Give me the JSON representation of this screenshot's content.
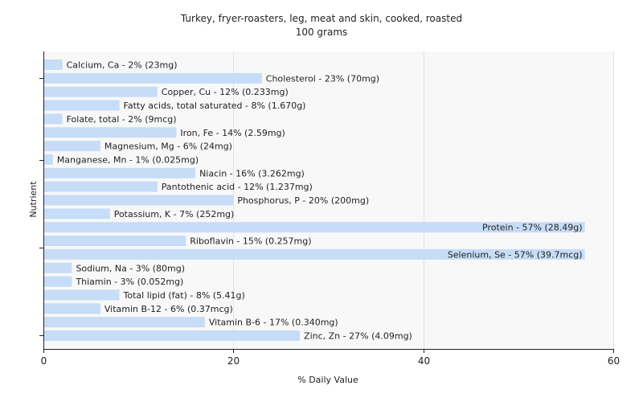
{
  "chart_data": {
    "type": "bar",
    "orientation": "horizontal",
    "title": "Turkey, fryer-roasters, leg, meat and skin, cooked, roasted",
    "subtitle": "100 grams",
    "xlabel": "% Daily Value",
    "ylabel": "Nutrient",
    "xlim": [
      0,
      60
    ],
    "xticks": [
      "0",
      "20",
      "40",
      "60"
    ],
    "grid": true,
    "bar_color": "#c6dcf7",
    "categories": [
      "Calcium, Ca",
      "Cholesterol",
      "Copper, Cu",
      "Fatty acids, total saturated",
      "Folate, total",
      "Iron, Fe",
      "Magnesium, Mg",
      "Manganese, Mn",
      "Niacin",
      "Pantothenic acid",
      "Phosphorus, P",
      "Potassium, K",
      "Protein",
      "Riboflavin",
      "Selenium, Se",
      "Sodium, Na",
      "Thiamin",
      "Total lipid (fat)",
      "Vitamin B-12",
      "Vitamin B-6",
      "Zinc, Zn"
    ],
    "values": [
      2,
      23,
      12,
      8,
      2,
      14,
      6,
      1,
      16,
      12,
      20,
      7,
      57,
      15,
      57,
      3,
      3,
      8,
      6,
      17,
      27
    ],
    "labels": [
      "Calcium, Ca - 2% (23mg)",
      "Cholesterol - 23% (70mg)",
      "Copper, Cu - 12% (0.233mg)",
      "Fatty acids, total saturated - 8% (1.670g)",
      "Folate, total - 2% (9mcg)",
      "Iron, Fe - 14% (2.59mg)",
      "Magnesium, Mg - 6% (24mg)",
      "Manganese, Mn - 1% (0.025mg)",
      "Niacin - 16% (3.262mg)",
      "Pantothenic acid - 12% (1.237mg)",
      "Phosphorus, P - 20% (200mg)",
      "Potassium, K - 7% (252mg)",
      "Protein - 57% (28.49g)",
      "Riboflavin - 15% (0.257mg)",
      "Selenium, Se - 57% (39.7mcg)",
      "Sodium, Na - 3% (80mg)",
      "Thiamin - 3% (0.052mg)",
      "Total lipid (fat) - 8% (5.41g)",
      "Vitamin B-12 - 6% (0.37mcg)",
      "Vitamin B-6 - 17% (0.340mg)",
      "Zinc, Zn - 27% (4.09mg)"
    ]
  }
}
